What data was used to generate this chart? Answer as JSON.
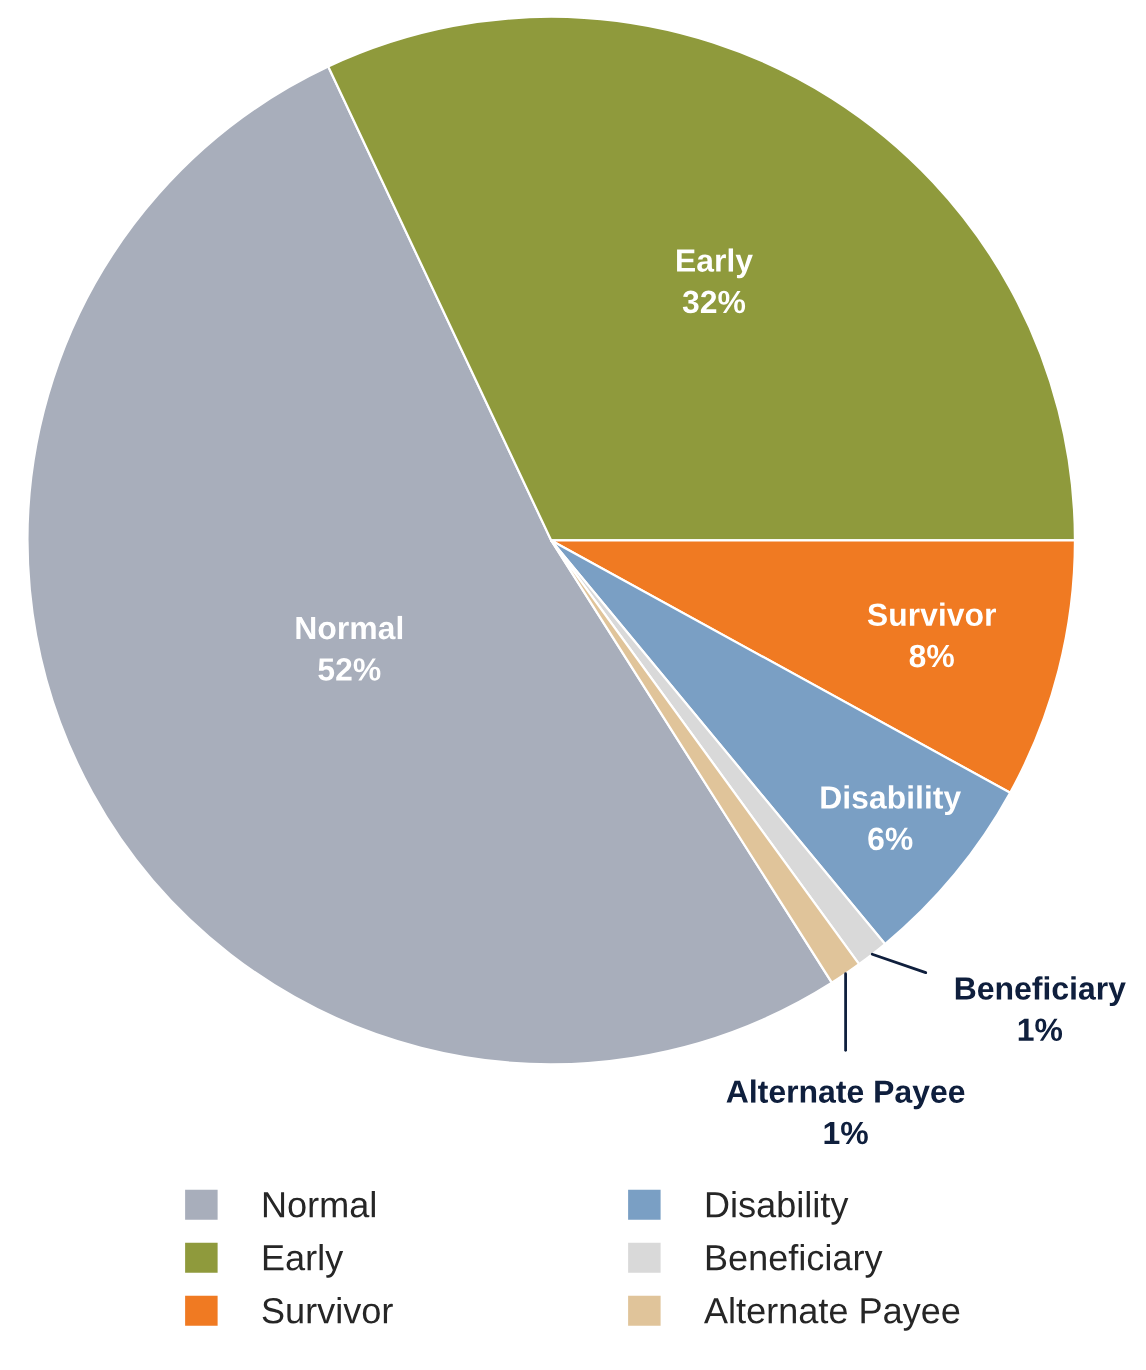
{
  "chart_data": {
    "type": "pie",
    "categories": [
      "Normal",
      "Early",
      "Survivor",
      "Disability",
      "Beneficiary",
      "Alternate Payee"
    ],
    "values": [
      52,
      32,
      8,
      6,
      1,
      1
    ],
    "colors": [
      "#a8aebb",
      "#8f9a3c",
      "#f07a22",
      "#7a9fc4",
      "#d9d9d9",
      "#e0c49a"
    ],
    "value_labels": [
      "52%",
      "32%",
      "8%",
      "6%",
      "1%",
      "1%"
    ],
    "legend": "bottom"
  }
}
